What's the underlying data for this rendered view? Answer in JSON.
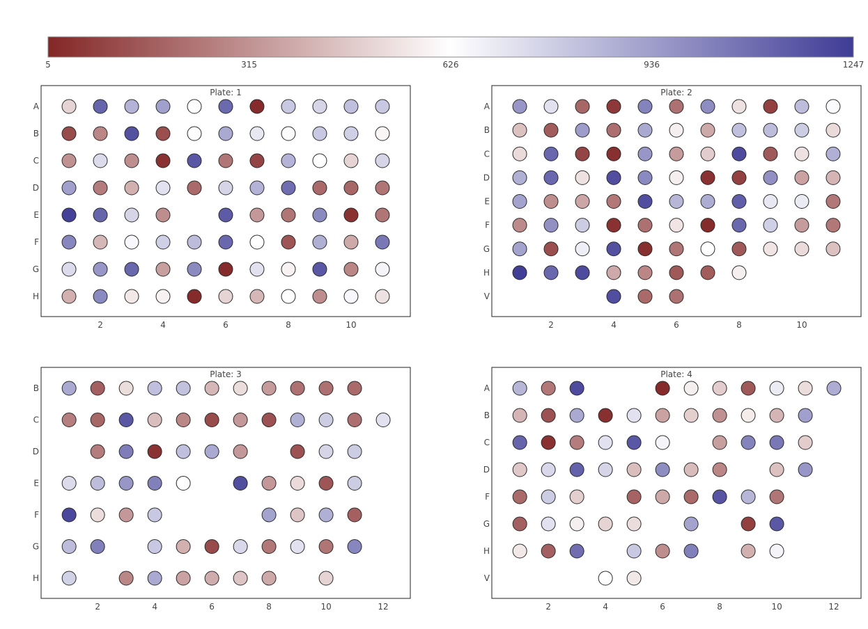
{
  "chart_data": {
    "type": "scatter",
    "subtype": "plate-heatmap",
    "colorscale": {
      "min": 5,
      "max": 1247,
      "colors": [
        "#832626",
        "#ffffff",
        "#3f3c96"
      ],
      "ticks": [
        "5",
        "315",
        "626",
        "936",
        "1247"
      ]
    },
    "plates": [
      {
        "title": "Plate: 1",
        "xlim": [
          0.11,
          11.89
        ],
        "xticks": [
          2,
          4,
          6,
          8,
          10
        ],
        "rows": [
          "A",
          "B",
          "C",
          "D",
          "E",
          "F",
          "G",
          "H"
        ],
        "values": {
          "A": [
            500,
            1120,
            870,
            930,
            630,
            1100,
            20,
            800,
            760,
            830,
            800
          ],
          "B": [
            110,
            280,
            1180,
            120,
            630,
            900,
            700,
            635,
            800,
            780,
            600
          ],
          "C": [
            310,
            740,
            300,
            40,
            1160,
            230,
            90,
            870,
            626,
            500,
            760
          ],
          "D": [
            930,
            250,
            400,
            720,
            200,
            760,
            870,
            1090,
            200,
            190,
            230
          ],
          "E": [
            1230,
            1120,
            760,
            300,
            null,
            1150,
            330,
            230,
            1000,
            40,
            230
          ],
          "F": [
            1010,
            420,
            650,
            780,
            840,
            1110,
            630,
            140,
            880,
            380,
            1060
          ],
          "G": [
            740,
            960,
            1110,
            350,
            1000,
            20,
            720,
            590,
            1160,
            280,
            660
          ],
          "H": [
            400,
            1000,
            560,
            590,
            20,
            500,
            420,
            630,
            300,
            650,
            540
          ]
        }
      },
      {
        "title": "Plate: 2",
        "xlim": [
          0.11,
          11.89
        ],
        "xticks": [
          2,
          4,
          6,
          8,
          10
        ],
        "rows": [
          "A",
          "B",
          "C",
          "D",
          "E",
          "F",
          "G",
          "H",
          "V"
        ],
        "values": {
          "A": [
            960,
            720,
            190,
            60,
            1020,
            220,
            990,
            540,
            80,
            840,
            640
          ],
          "B": [
            450,
            160,
            940,
            210,
            900,
            580,
            380,
            830,
            840,
            790,
            520
          ],
          "C": [
            520,
            1110,
            90,
            30,
            960,
            340,
            480,
            1200,
            150,
            540,
            880
          ],
          "D": [
            880,
            1110,
            540,
            1190,
            1000,
            580,
            40,
            80,
            980,
            360,
            410
          ],
          "E": [
            920,
            300,
            370,
            240,
            1190,
            860,
            890,
            1140,
            700,
            690,
            240
          ],
          "F": [
            290,
            980,
            790,
            40,
            220,
            550,
            20,
            1110,
            780,
            340,
            240
          ],
          "G": [
            920,
            120,
            680,
            1180,
            30,
            230,
            630,
            150,
            550,
            520,
            450
          ],
          "H": [
            1240,
            1110,
            1200,
            380,
            280,
            150,
            160,
            580
          ],
          "V": [
            null,
            null,
            null,
            1190,
            200,
            220
          ]
        }
      },
      {
        "title": "Plate: 3",
        "xlim": [
          0.02,
          12.95
        ],
        "xticks": [
          2,
          4,
          6,
          8,
          10,
          12
        ],
        "rows": [
          "B",
          "C",
          "D",
          "E",
          "F",
          "G",
          "H"
        ],
        "values": {
          "B": [
            900,
            170,
            530,
            830,
            820,
            420,
            530,
            340,
            220,
            220,
            200
          ],
          "C": [
            260,
            190,
            1160,
            440,
            280,
            110,
            330,
            130,
            880,
            790,
            210,
            720
          ],
          "D": [
            null,
            250,
            1040,
            40,
            830,
            900,
            330,
            null,
            130,
            760,
            790
          ],
          "E": [
            740,
            840,
            960,
            1030,
            630,
            null,
            1190,
            330,
            520,
            140,
            790
          ],
          "F": [
            1210,
            530,
            330,
            800,
            null,
            null,
            null,
            920,
            460,
            880,
            170
          ],
          "G": [
            840,
            1030,
            null,
            800,
            400,
            110,
            750,
            240,
            720,
            230,
            1010
          ],
          "H": [
            770,
            null,
            280,
            900,
            360,
            390,
            460,
            380,
            null,
            500
          ]
        }
      },
      {
        "title": "Plate: 4",
        "xlim": [
          0.02,
          12.95
        ],
        "xticks": [
          2,
          4,
          6,
          8,
          10,
          12
        ],
        "rows": [
          "A",
          "B",
          "C",
          "D",
          "F",
          "G",
          "H",
          "V"
        ],
        "values": {
          "A": [
            860,
            240,
            1200,
            null,
            null,
            20,
            580,
            480,
            150,
            690,
            530,
            890
          ],
          "B": [
            410,
            130,
            900,
            30,
            720,
            360,
            490,
            310,
            570,
            410,
            930
          ],
          "C": [
            1120,
            40,
            250,
            720,
            1160,
            660,
            null,
            350,
            1020,
            1060,
            480
          ],
          "D": [
            470,
            750,
            1130,
            760,
            440,
            990,
            430,
            280,
            null,
            450,
            960
          ],
          "F": [
            200,
            790,
            490,
            null,
            180,
            380,
            200,
            1170,
            860,
            230
          ],
          "G": [
            170,
            720,
            580,
            500,
            530,
            null,
            920,
            null,
            80,
            1160
          ],
          "H": [
            560,
            170,
            1090,
            null,
            800,
            300,
            1030,
            null,
            400,
            660
          ],
          "V": [
            null,
            null,
            null,
            626,
            560
          ]
        }
      }
    ]
  }
}
